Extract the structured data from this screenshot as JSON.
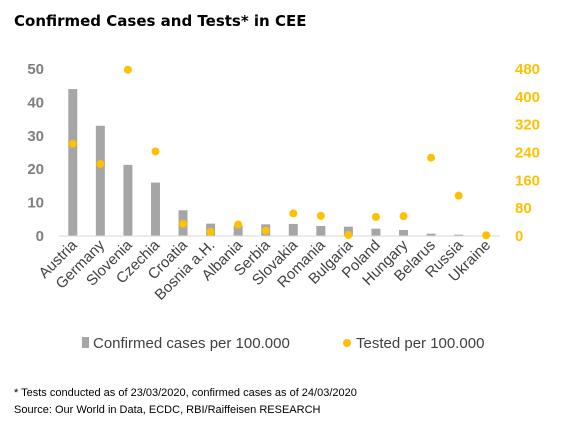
{
  "chart_data": {
    "type": "bar",
    "title": "Confirmed Cases and Tests* in CEE",
    "categories": [
      "Austria",
      "Germany",
      "Slovenia",
      "Czechia",
      "Croatia",
      "Bosnia a.H.",
      "Albania",
      "Serbia",
      "Slovakia",
      "Romania",
      "Bulgaria",
      "Poland",
      "Hungary",
      "Belarus",
      "Russia",
      "Ukraine"
    ],
    "series": [
      {
        "name": "Confirmed cases per 100.000",
        "type": "bar",
        "axis": "left",
        "color": "#a6a6a6",
        "values": [
          44,
          33,
          21.3,
          16,
          7.7,
          3.7,
          3.1,
          3.5,
          3.6,
          3,
          2.8,
          2.2,
          1.8,
          0.7,
          0.4,
          0.2
        ]
      },
      {
        "name": "Tested per 100.000",
        "type": "scatter",
        "axis": "right",
        "color": "#ffc000",
        "values": [
          265,
          207,
          478,
          243,
          35,
          12,
          33,
          15,
          65,
          58,
          3,
          55,
          57,
          225,
          116,
          2
        ]
      }
    ],
    "y_left": {
      "min": 0,
      "max": 50,
      "ticks": [
        "0",
        "10",
        "20",
        "30",
        "40",
        "50"
      ]
    },
    "y_right": {
      "min": 0,
      "max": 480,
      "ticks": [
        "0",
        "80",
        "160",
        "240",
        "320",
        "400",
        "480"
      ]
    },
    "legend_position": "bottom",
    "grid": false
  },
  "footnote": {
    "line1": "* Tests conducted as of 23/03/2020, confirmed cases as of 24/03/2020",
    "line2": "Source: Our World in Data, ECDC, RBI/Raiffeisen RESEARCH"
  }
}
